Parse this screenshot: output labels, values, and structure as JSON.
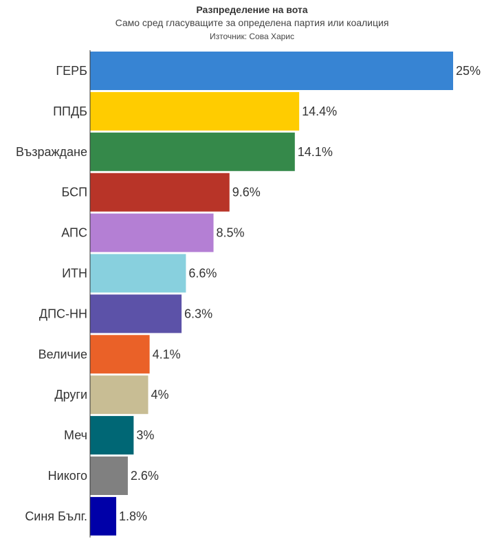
{
  "chart_data": {
    "type": "bar",
    "orientation": "horizontal",
    "title": "Разпределение на вота",
    "subtitle": "Само сред гласуващите за определена партия или коалиция",
    "source": "Източник: Сова Харис",
    "categories": [
      "ГЕРБ",
      "ППДБ",
      "Възраждане",
      "БСП",
      "АПС",
      "ИТН",
      "ДПС-НН",
      "Величие",
      "Други",
      "Меч",
      "Никого",
      "Синя Бълг."
    ],
    "values": [
      25,
      14.4,
      14.1,
      9.6,
      8.5,
      6.6,
      6.3,
      4.1,
      4,
      3,
      2.6,
      1.8
    ],
    "value_labels": [
      "25%",
      "14.4%",
      "14.1%",
      "9.6%",
      "8.5%",
      "6.6%",
      "6.3%",
      "4.1%",
      "4%",
      "3%",
      "2.6%",
      "1.8%"
    ],
    "colors": [
      "#3784d3",
      "#ffcc00",
      "#35894a",
      "#b83428",
      "#b47fd4",
      "#88d0de",
      "#5c52a8",
      "#ea6128",
      "#c8bd94",
      "#006775",
      "#808080",
      "#0000a8"
    ],
    "xlim": [
      0,
      25
    ],
    "grid": false,
    "legend": "none"
  }
}
